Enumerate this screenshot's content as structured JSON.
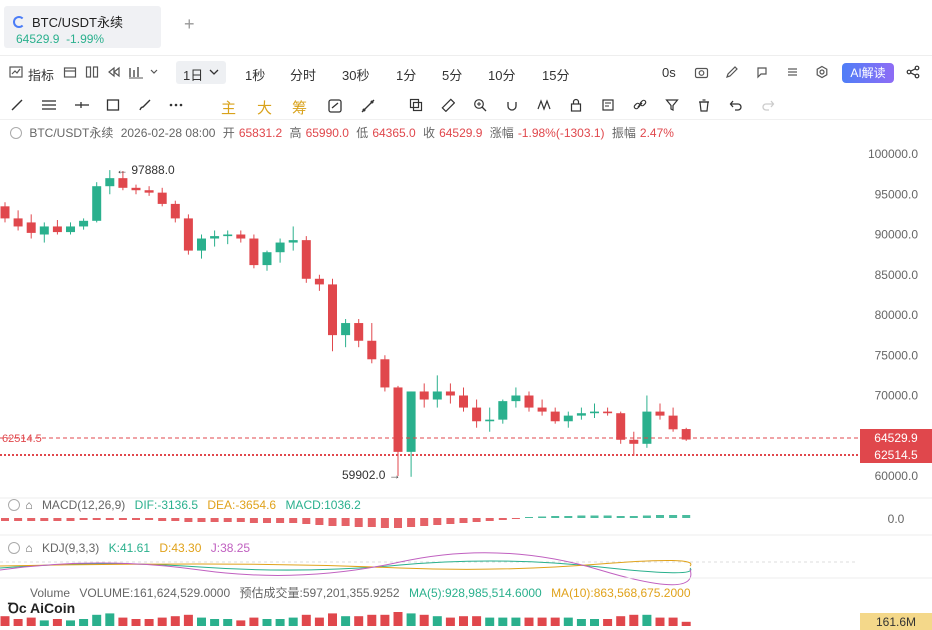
{
  "tab": {
    "name": "BTC/USDT永续",
    "price": "64529.9",
    "change": "-1.99%"
  },
  "toolbar": {
    "indicators": "指标",
    "active_tf": "1日",
    "timeframes": [
      "1秒",
      "分时",
      "30秒",
      "1分",
      "5分",
      "10分",
      "15分"
    ],
    "countdown": "0s",
    "ai": "AI解读"
  },
  "drawbar": {
    "main": "主",
    "big": "大",
    "chip": "筹"
  },
  "info": {
    "symbol": "BTC/USDT永续",
    "datetime": "2026-02-28 08:00",
    "open_label": "开",
    "open": "65831.2",
    "high_label": "高",
    "high": "65990.0",
    "low_label": "低",
    "low": "64365.0",
    "close_label": "收",
    "close": "64529.9",
    "chg_label": "涨幅",
    "chg": "-1.98%(-1303.1)",
    "amp_label": "振幅",
    "amp": "2.47%"
  },
  "price_axis": [
    "100000.0",
    "95000.0",
    "90000.0",
    "85000.0",
    "80000.0",
    "75000.0",
    "70000.0",
    "60000.0"
  ],
  "annotations": {
    "high": "97888.0",
    "low": "59902.0",
    "left_level": "62514.5"
  },
  "price_tags": {
    "last": "64529.9",
    "level": "62514.5"
  },
  "macd": {
    "label": "MACD(12,26,9)",
    "dif": "DIF:-3136.5",
    "dea": "DEA:-3654.6",
    "macd": "MACD:1036.2",
    "axis": "0.0"
  },
  "kdj": {
    "label": "KDJ(9,3,3)",
    "k": "K:41.61",
    "d": "D:43.30",
    "j": "J:38.25"
  },
  "volume": {
    "label": "Volume",
    "volume": "VOLUME:161,624,529.0000",
    "est": "预估成交量:597,201,355.9252",
    "ma5": "MA(5):928,985,514.6000",
    "ma10": "MA(10):863,568,675.2000",
    "tag": "161.6M"
  },
  "logo": "AiCoin",
  "colors": {
    "up": "#2ab08d",
    "down": "#e0474c",
    "accent": "#4f7ef7"
  },
  "chart_data": {
    "type": "candlestick",
    "ylim": [
      58000,
      102000
    ],
    "candles": [
      [
        93500,
        94000,
        91500,
        92000
      ],
      [
        92000,
        93000,
        90500,
        91000
      ],
      [
        91500,
        92500,
        89500,
        90200
      ],
      [
        90000,
        91500,
        89000,
        91000
      ],
      [
        91000,
        91800,
        90000,
        90300
      ],
      [
        90300,
        91500,
        90000,
        91000
      ],
      [
        91000,
        92000,
        90600,
        91700
      ],
      [
        91700,
        96500,
        91500,
        96000
      ],
      [
        96000,
        98000,
        95000,
        97000
      ],
      [
        97000,
        97888,
        95500,
        95800
      ],
      [
        95800,
        96200,
        95000,
        95500
      ],
      [
        95500,
        96000,
        94800,
        95200
      ],
      [
        95200,
        95800,
        93500,
        93800
      ],
      [
        93800,
        94200,
        91500,
        92000
      ],
      [
        92000,
        92500,
        87500,
        88000
      ],
      [
        88000,
        90000,
        87000,
        89500
      ],
      [
        89500,
        90500,
        88500,
        89800
      ],
      [
        89800,
        90500,
        88800,
        90000
      ],
      [
        90000,
        90500,
        89000,
        89500
      ],
      [
        89500,
        90000,
        85800,
        86200
      ],
      [
        86200,
        88000,
        85500,
        87800
      ],
      [
        87800,
        89500,
        86500,
        89000
      ],
      [
        89000,
        91000,
        88000,
        89300
      ],
      [
        89300,
        89800,
        84000,
        84500
      ],
      [
        84500,
        85000,
        83000,
        83800
      ],
      [
        83800,
        84500,
        75500,
        77500
      ],
      [
        77500,
        79500,
        76000,
        79000
      ],
      [
        79000,
        79500,
        76000,
        76800
      ],
      [
        76800,
        79000,
        74000,
        74500
      ],
      [
        74500,
        75000,
        70500,
        71000
      ],
      [
        71000,
        71200,
        60000,
        63000
      ],
      [
        63000,
        70500,
        59902,
        70500
      ],
      [
        70500,
        71500,
        68500,
        69500
      ],
      [
        69500,
        72500,
        68500,
        70500
      ],
      [
        70500,
        71500,
        69000,
        70000
      ],
      [
        70000,
        71000,
        68000,
        68500
      ],
      [
        68500,
        69500,
        66000,
        66800
      ],
      [
        66800,
        68500,
        65500,
        67000
      ],
      [
        67000,
        69500,
        66500,
        69300
      ],
      [
        69300,
        71000,
        68500,
        70000
      ],
      [
        70000,
        70500,
        68000,
        68500
      ],
      [
        68500,
        69500,
        67500,
        68000
      ],
      [
        68000,
        68500,
        66500,
        66800
      ],
      [
        66800,
        68000,
        66000,
        67500
      ],
      [
        67500,
        68500,
        67000,
        67800
      ],
      [
        67800,
        69000,
        67200,
        68000
      ],
      [
        68000,
        68500,
        67500,
        67800
      ],
      [
        67800,
        68000,
        64000,
        64500
      ],
      [
        64500,
        65500,
        62514,
        64000
      ],
      [
        64000,
        70000,
        63500,
        68000
      ],
      [
        68000,
        69000,
        67000,
        67500
      ],
      [
        67500,
        68500,
        65500,
        65800
      ],
      [
        65831.2,
        65990,
        64365,
        64529.9
      ]
    ],
    "volumes": [
      0.7,
      0.5,
      0.6,
      0.4,
      0.5,
      0.4,
      0.5,
      0.8,
      0.9,
      0.6,
      0.5,
      0.5,
      0.6,
      0.7,
      0.8,
      0.6,
      0.5,
      0.5,
      0.4,
      0.6,
      0.5,
      0.5,
      0.6,
      0.8,
      0.6,
      0.9,
      0.7,
      0.7,
      0.8,
      0.8,
      1.0,
      0.9,
      0.8,
      0.7,
      0.6,
      0.7,
      0.7,
      0.6,
      0.6,
      0.6,
      0.6,
      0.6,
      0.6,
      0.6,
      0.5,
      0.5,
      0.5,
      0.7,
      0.8,
      0.8,
      0.6,
      0.6,
      0.3
    ],
    "macd_hist": [
      -0.3,
      -0.3,
      -0.3,
      -0.3,
      -0.3,
      -0.3,
      -0.2,
      -0.2,
      -0.2,
      -0.2,
      -0.2,
      -0.2,
      -0.3,
      -0.3,
      -0.4,
      -0.4,
      -0.4,
      -0.4,
      -0.4,
      -0.5,
      -0.5,
      -0.5,
      -0.5,
      -0.6,
      -0.7,
      -0.8,
      -0.8,
      -0.9,
      -0.9,
      -1.0,
      -1.0,
      -0.9,
      -0.8,
      -0.7,
      -0.6,
      -0.5,
      -0.4,
      -0.3,
      -0.2,
      -0.1,
      0.1,
      0.15,
      0.2,
      0.2,
      0.25,
      0.25,
      0.25,
      0.2,
      0.2,
      0.25,
      0.3,
      0.3,
      0.3
    ]
  }
}
